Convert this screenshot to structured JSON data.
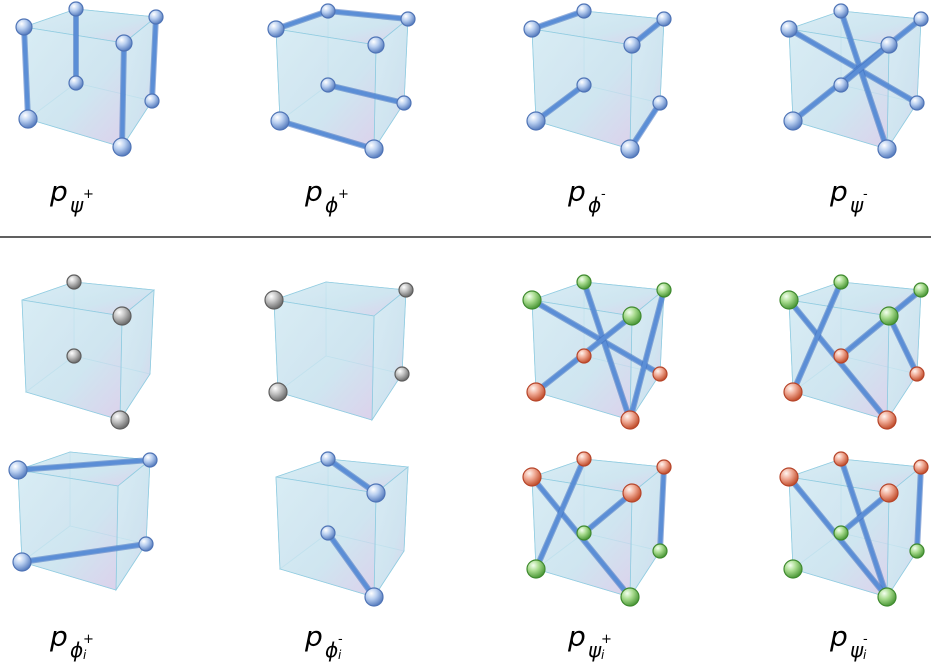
{
  "labels": {
    "row1": [
      {
        "greek": "ψ",
        "sup": "+",
        "idx": ""
      },
      {
        "greek": "ϕ",
        "sup": "+",
        "idx": ""
      },
      {
        "greek": "ϕ",
        "sup": "-",
        "idx": ""
      },
      {
        "greek": "ψ",
        "sup": "-",
        "idx": ""
      }
    ],
    "row2": [
      {
        "greek": "ϕ",
        "sup": "+",
        "idx": "i"
      },
      {
        "greek": "ϕ",
        "sup": "-",
        "idx": "i"
      },
      {
        "greek": "ψ",
        "sup": "+",
        "idx": "i"
      },
      {
        "greek": "ψ",
        "sup": "-",
        "idx": "i"
      }
    ],
    "prefix": "p"
  },
  "colors": {
    "cube_fill": "#cfe6f0",
    "cube_edge": "#8ecbe0",
    "bond": "#5b8ed6",
    "sphere_blue": "#a9c6ee",
    "sphere_gray": "#a7a7a7",
    "sphere_green": "#8fcf6e",
    "sphere_red": "#e7917b",
    "divider": "#000000"
  }
}
